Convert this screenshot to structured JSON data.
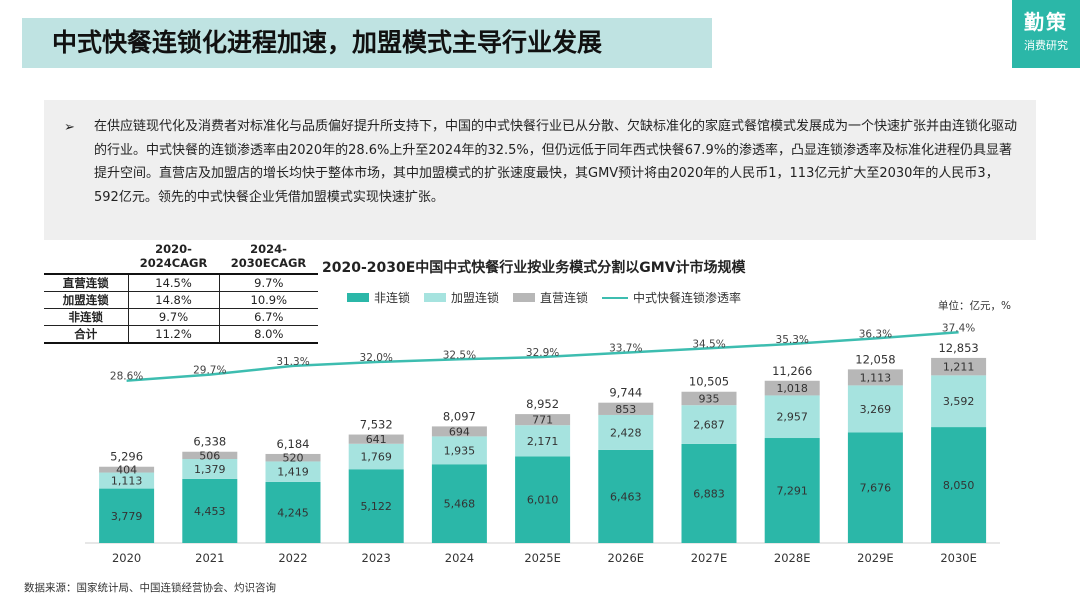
{
  "header": {
    "title": "中式快餐连锁化进程加速，加盟模式主导行业发展"
  },
  "logo": {
    "main": "勤策",
    "sub": "消费研究"
  },
  "summary": {
    "bullet": "➢",
    "text": "在供应链现代化及消费者对标准化与品质偏好提升所支持下，中国的中式快餐行业已从分散、欠缺标准化的家庭式餐馆模式发展成为一个快速扩张并由连锁化驱动的行业。中式快餐的连锁渗透率由2020年的28.6%上升至2024年的32.5%，但仍远低于同年西式快餐67.9%的渗透率，凸显连锁渗透率及标准化进程仍具显著提升空间。直营店及加盟店的增长均快于整体市场，其中加盟模式的扩张速度最快，其GMV预计将由2020年的人民币1，113亿元扩大至2030年的人民币3，592亿元。领先的中式快餐企业凭借加盟模式实现快速扩张。"
  },
  "cagr_table": {
    "headers": [
      "",
      "2020-2024CAGR",
      "2024-2030ECAGR"
    ],
    "rows": [
      {
        "label": "直营连锁",
        "c1": "14.5%",
        "c2": "9.7%"
      },
      {
        "label": "加盟连锁",
        "c1": "14.8%",
        "c2": "10.9%"
      },
      {
        "label": "非连锁",
        "c1": "9.7%",
        "c2": "6.7%"
      },
      {
        "label": "合计",
        "c1": "11.2%",
        "c2": "8.0%"
      }
    ]
  },
  "chart_data": {
    "type": "bar",
    "title": "2020-2030E中国中式快餐行业按业务模式分割以GMV计市场规模",
    "unit": "单位：亿元，%",
    "categories": [
      "2020",
      "2021",
      "2022",
      "2023",
      "2024",
      "2025E",
      "2026E",
      "2027E",
      "2028E",
      "2029E",
      "2030E"
    ],
    "series": [
      {
        "name": "非连锁",
        "color": "#2bb7a8",
        "values": [
          3779,
          4453,
          4245,
          5122,
          5468,
          6010,
          6463,
          6883,
          7291,
          7676,
          8050
        ],
        "labels": [
          "3,779",
          "4,453",
          "4,245",
          "5,122",
          "5,468",
          "6,010",
          "6,463",
          "6,883",
          "7,291",
          "7,676",
          "8,050"
        ]
      },
      {
        "name": "加盟连锁",
        "color": "#a6e3df",
        "values": [
          1113,
          1379,
          1419,
          1769,
          1935,
          2171,
          2428,
          2687,
          2957,
          3269,
          3592
        ],
        "labels": [
          "1,113",
          "1,379",
          "1,419",
          "1,769",
          "1,935",
          "2,171",
          "2,428",
          "2,687",
          "2,957",
          "3,269",
          "3,592"
        ]
      },
      {
        "name": "直营连锁",
        "color": "#b7b7b7",
        "values": [
          404,
          506,
          520,
          641,
          694,
          771,
          853,
          935,
          1018,
          1113,
          1211
        ],
        "labels": [
          "404",
          "506",
          "520",
          "641",
          "694",
          "771",
          "853",
          "935",
          "1,018",
          "1,113",
          "1,211"
        ]
      }
    ],
    "totals": [
      "5,296",
      "6,338",
      "6,184",
      "7,532",
      "8,097",
      "8,952",
      "9,744",
      "10,505",
      "11,266",
      "12,058",
      "12,853"
    ],
    "line": {
      "name": "中式快餐连锁渗透率",
      "color": "#3dbdb0",
      "values": [
        28.6,
        29.7,
        31.3,
        32.0,
        32.5,
        32.9,
        33.7,
        34.5,
        35.3,
        36.3,
        37.4
      ],
      "labels": [
        "28.6%",
        "29.7%",
        "31.3%",
        "32.0%",
        "32.5%",
        "32.9%",
        "33.7%",
        "34.5%",
        "35.3%",
        "36.3%",
        "37.4%"
      ]
    }
  },
  "source": "数据来源：国家统计局、中国连锁经营协会、灼识咨询"
}
